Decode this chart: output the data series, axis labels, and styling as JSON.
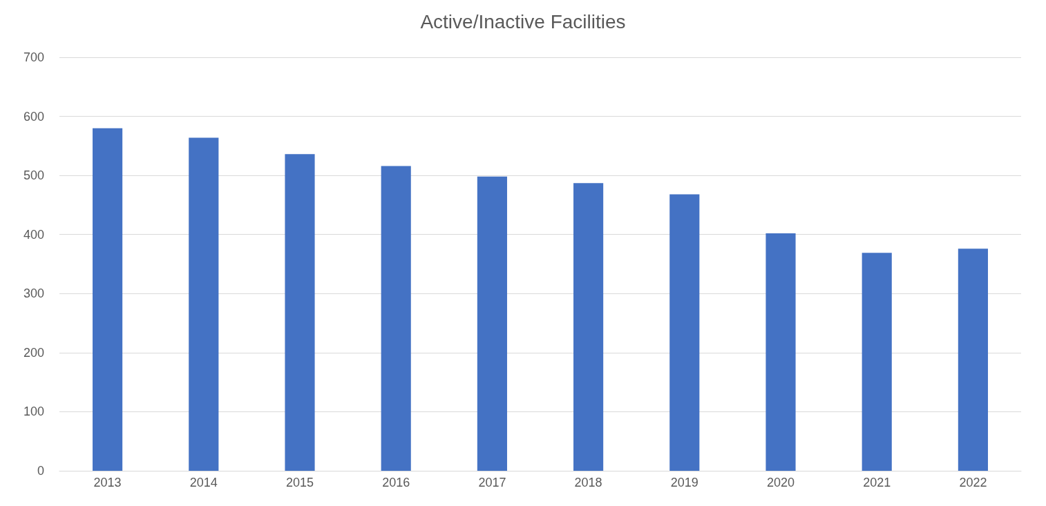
{
  "chart_data": {
    "type": "bar",
    "title": "Active/Inactive Facilities",
    "categories": [
      "2013",
      "2014",
      "2015",
      "2016",
      "2017",
      "2018",
      "2019",
      "2020",
      "2021",
      "2022"
    ],
    "values": [
      580,
      564,
      536,
      516,
      498,
      487,
      468,
      402,
      369,
      376
    ],
    "color": "#4472c4",
    "ylim": [
      0,
      700
    ],
    "yticks": [
      0,
      100,
      200,
      300,
      400,
      500,
      600,
      700
    ],
    "grid": "y"
  }
}
